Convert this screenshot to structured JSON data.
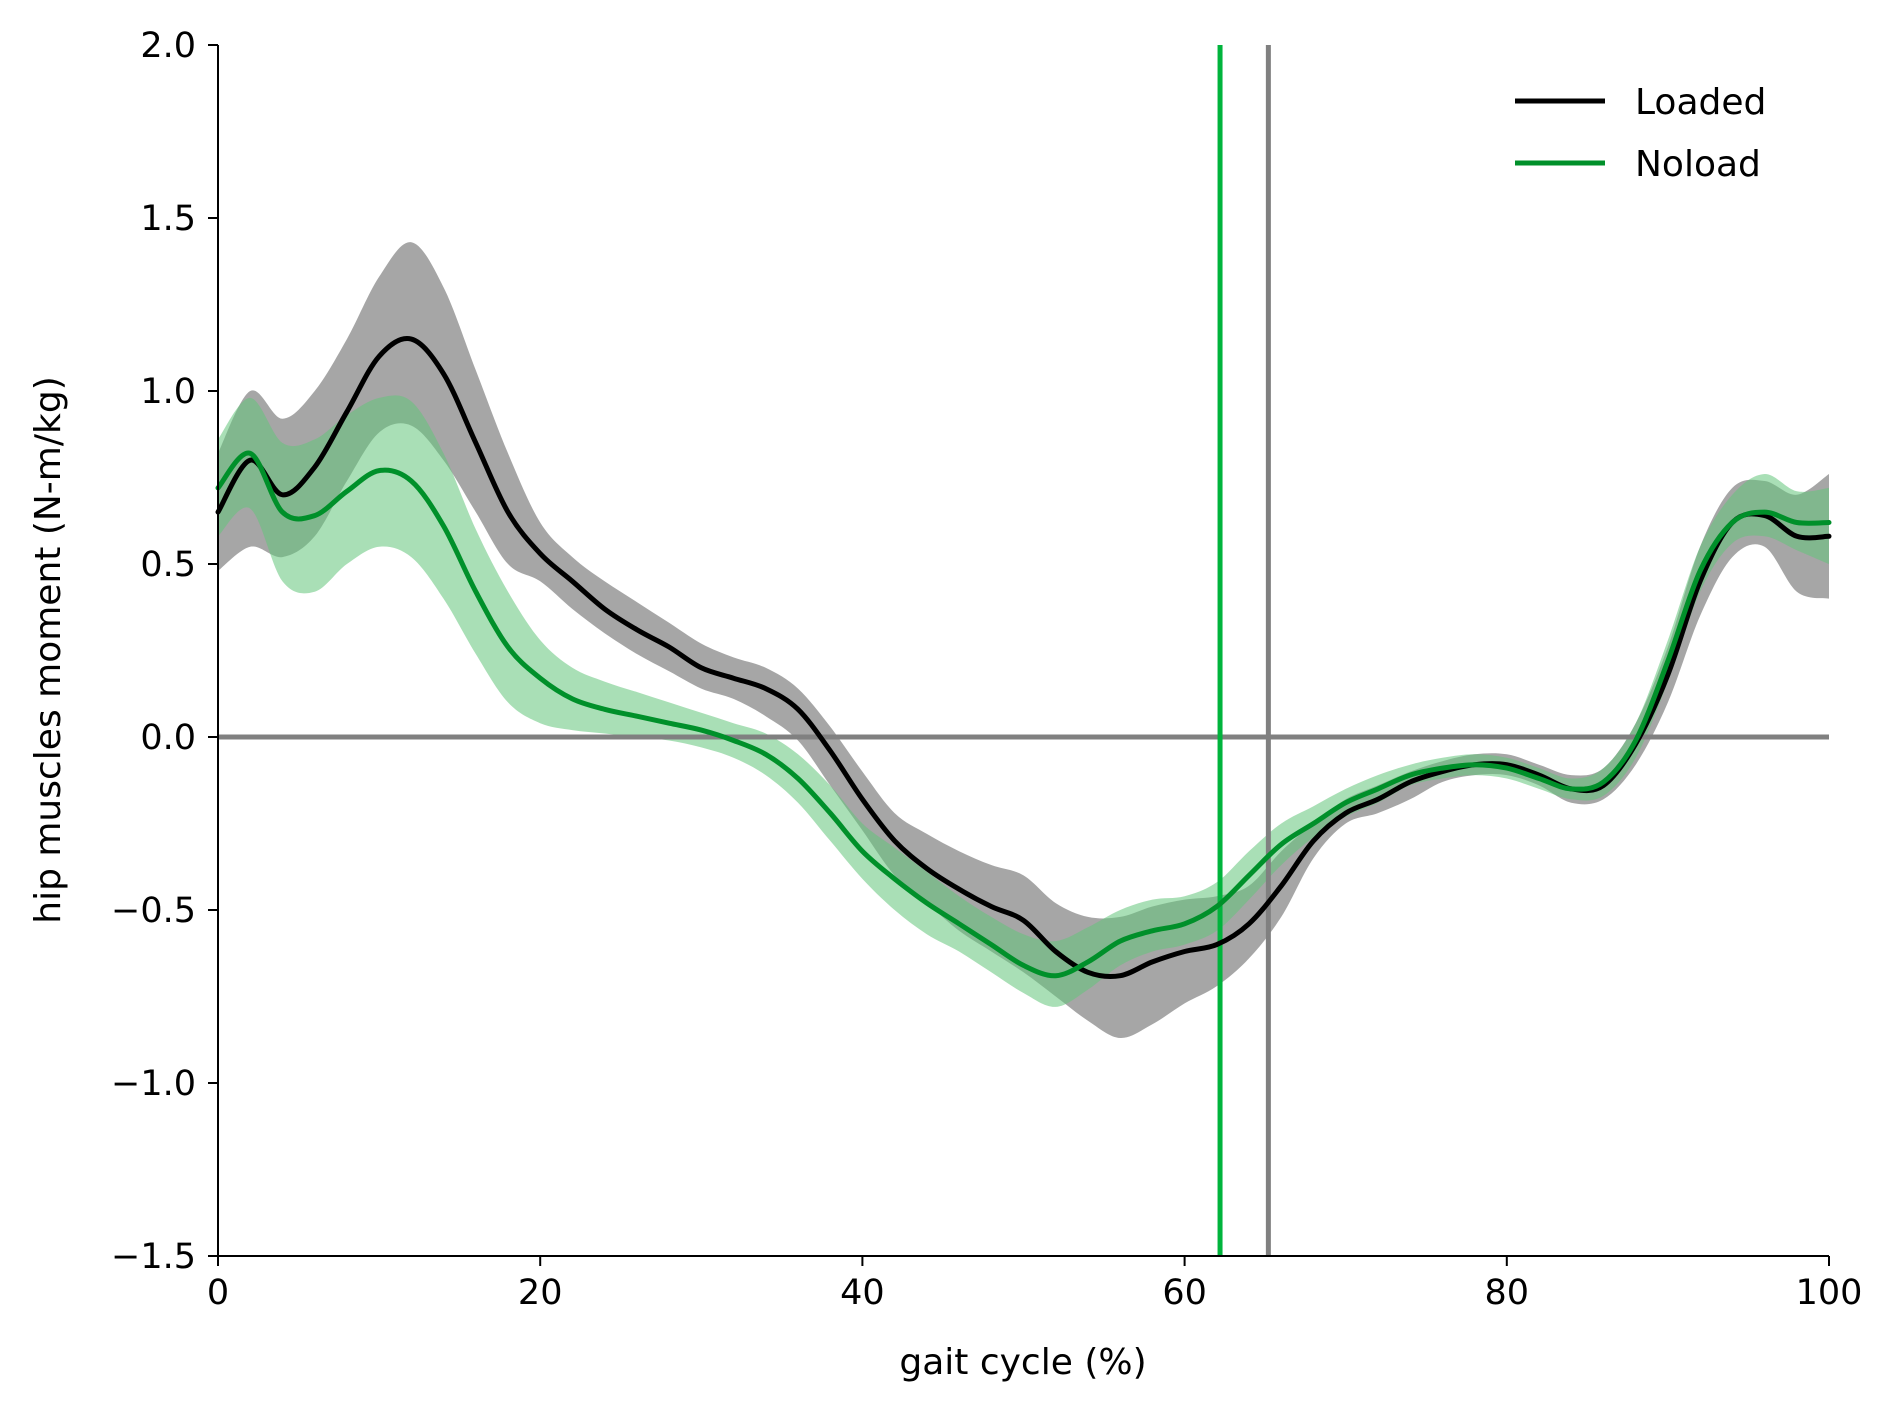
{
  "chart_data": {
    "type": "line",
    "title": "",
    "xlabel": "gait cycle (%)",
    "ylabel": "hip muscles moment (N-m/kg)",
    "xlim": [
      0,
      100
    ],
    "ylim": [
      -1.5,
      2.0
    ],
    "xticks": [
      0,
      20,
      40,
      60,
      80,
      100
    ],
    "xtick_labels": [
      "0",
      "20",
      "40",
      "60",
      "80",
      "100"
    ],
    "yticks": [
      -1.5,
      -1.0,
      -0.5,
      0.0,
      0.5,
      1.0,
      1.5,
      2.0
    ],
    "ytick_labels": [
      "−1.5",
      "−1.0",
      "−0.5",
      "0.0",
      "0.5",
      "1.0",
      "1.5",
      "2.0"
    ],
    "grid": false,
    "legend_position": "top-right",
    "x": [
      0,
      2,
      4,
      6,
      8,
      10,
      12,
      14,
      16,
      18,
      20,
      22,
      24,
      26,
      28,
      30,
      32,
      34,
      36,
      38,
      40,
      42,
      44,
      46,
      48,
      50,
      52,
      54,
      56,
      58,
      60,
      62,
      64,
      66,
      68,
      70,
      72,
      74,
      76,
      78,
      80,
      82,
      84,
      86,
      88,
      90,
      92,
      94,
      96,
      98,
      100
    ],
    "series": [
      {
        "name": "Loaded",
        "color": "#000000",
        "band_color": "#808080",
        "mean": [
          0.65,
          0.8,
          0.7,
          0.78,
          0.94,
          1.1,
          1.15,
          1.05,
          0.85,
          0.65,
          0.53,
          0.45,
          0.37,
          0.31,
          0.26,
          0.2,
          0.17,
          0.14,
          0.08,
          -0.04,
          -0.18,
          -0.3,
          -0.38,
          -0.44,
          -0.49,
          -0.53,
          -0.62,
          -0.68,
          -0.69,
          -0.65,
          -0.62,
          -0.6,
          -0.54,
          -0.43,
          -0.3,
          -0.22,
          -0.18,
          -0.13,
          -0.1,
          -0.08,
          -0.08,
          -0.11,
          -0.15,
          -0.14,
          -0.02,
          0.18,
          0.45,
          0.62,
          0.64,
          0.58,
          0.58
        ],
        "lower": [
          0.48,
          0.55,
          0.52,
          0.58,
          0.74,
          0.88,
          0.9,
          0.8,
          0.65,
          0.5,
          0.45,
          0.37,
          0.3,
          0.24,
          0.19,
          0.14,
          0.11,
          0.06,
          -0.01,
          -0.14,
          -0.27,
          -0.4,
          -0.48,
          -0.56,
          -0.62,
          -0.68,
          -0.75,
          -0.82,
          -0.87,
          -0.83,
          -0.77,
          -0.72,
          -0.64,
          -0.52,
          -0.35,
          -0.25,
          -0.22,
          -0.18,
          -0.13,
          -0.11,
          -0.11,
          -0.14,
          -0.19,
          -0.18,
          -0.08,
          0.1,
          0.35,
          0.52,
          0.55,
          0.42,
          0.4
        ],
        "upper": [
          0.82,
          1.0,
          0.92,
          1.0,
          1.15,
          1.33,
          1.43,
          1.3,
          1.06,
          0.82,
          0.62,
          0.52,
          0.45,
          0.39,
          0.33,
          0.27,
          0.23,
          0.2,
          0.14,
          0.03,
          -0.1,
          -0.22,
          -0.28,
          -0.33,
          -0.37,
          -0.4,
          -0.48,
          -0.52,
          -0.52,
          -0.49,
          -0.47,
          -0.46,
          -0.43,
          -0.33,
          -0.25,
          -0.18,
          -0.14,
          -0.1,
          -0.07,
          -0.05,
          -0.05,
          -0.08,
          -0.11,
          -0.09,
          0.04,
          0.26,
          0.55,
          0.72,
          0.74,
          0.7,
          0.76
        ]
      },
      {
        "name": "Noload",
        "color": "#00902a",
        "band_color": "#62c47a",
        "mean": [
          0.72,
          0.82,
          0.65,
          0.64,
          0.71,
          0.77,
          0.74,
          0.61,
          0.42,
          0.26,
          0.17,
          0.11,
          0.08,
          0.06,
          0.04,
          0.02,
          -0.01,
          -0.05,
          -0.12,
          -0.22,
          -0.33,
          -0.41,
          -0.48,
          -0.54,
          -0.6,
          -0.66,
          -0.69,
          -0.65,
          -0.59,
          -0.56,
          -0.54,
          -0.49,
          -0.4,
          -0.31,
          -0.25,
          -0.19,
          -0.15,
          -0.11,
          -0.09,
          -0.08,
          -0.09,
          -0.12,
          -0.15,
          -0.13,
          -0.01,
          0.22,
          0.48,
          0.62,
          0.65,
          0.62,
          0.62
        ],
        "lower": [
          0.58,
          0.66,
          0.45,
          0.42,
          0.5,
          0.55,
          0.52,
          0.4,
          0.24,
          0.1,
          0.04,
          0.02,
          0.01,
          0.0,
          -0.01,
          -0.03,
          -0.06,
          -0.11,
          -0.19,
          -0.3,
          -0.41,
          -0.5,
          -0.57,
          -0.62,
          -0.68,
          -0.74,
          -0.78,
          -0.73,
          -0.66,
          -0.62,
          -0.6,
          -0.56,
          -0.47,
          -0.37,
          -0.29,
          -0.23,
          -0.19,
          -0.14,
          -0.12,
          -0.11,
          -0.12,
          -0.15,
          -0.18,
          -0.17,
          -0.06,
          0.16,
          0.42,
          0.56,
          0.58,
          0.54,
          0.5
        ],
        "upper": [
          0.86,
          0.98,
          0.85,
          0.86,
          0.93,
          0.98,
          0.97,
          0.82,
          0.6,
          0.42,
          0.28,
          0.2,
          0.16,
          0.13,
          0.1,
          0.07,
          0.04,
          0.01,
          -0.05,
          -0.14,
          -0.25,
          -0.32,
          -0.39,
          -0.46,
          -0.52,
          -0.57,
          -0.59,
          -0.55,
          -0.5,
          -0.47,
          -0.46,
          -0.42,
          -0.33,
          -0.25,
          -0.2,
          -0.15,
          -0.11,
          -0.08,
          -0.06,
          -0.05,
          -0.06,
          -0.09,
          -0.12,
          -0.09,
          0.04,
          0.28,
          0.55,
          0.7,
          0.76,
          0.71,
          0.72
        ]
      }
    ],
    "reference_lines": [
      {
        "orientation": "horizontal",
        "value": 0.0,
        "color": "#808080"
      },
      {
        "orientation": "vertical",
        "value": 62.2,
        "color": "#00b43c"
      },
      {
        "orientation": "vertical",
        "value": 65.2,
        "color": "#808080"
      }
    ]
  }
}
